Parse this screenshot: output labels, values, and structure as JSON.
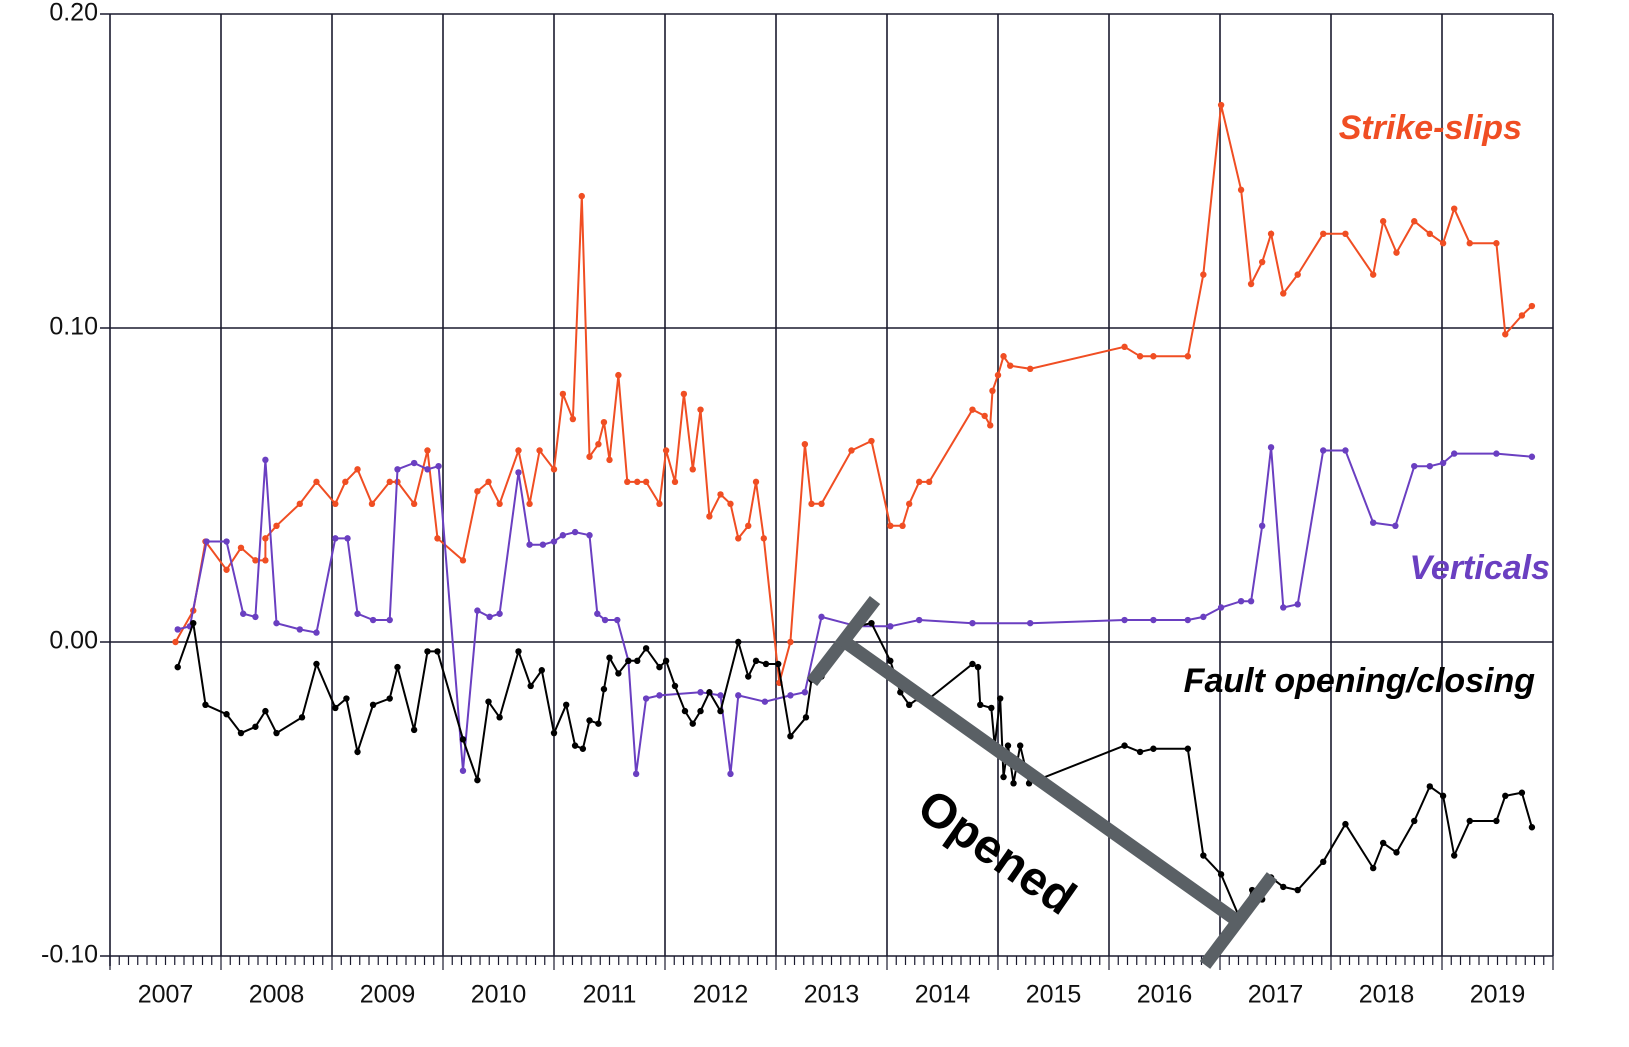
{
  "chart_data": {
    "type": "line",
    "xlim": [
      2007,
      2020
    ],
    "ylim": [
      -0.1,
      0.2
    ],
    "yticks": [
      {
        "value": -0.1,
        "label": "-0.10"
      },
      {
        "value": 0,
        "label": "0.00"
      },
      {
        "value": 0.1,
        "label": "0.10"
      },
      {
        "value": 0.2,
        "label": "0.20"
      }
    ],
    "xticks": [
      {
        "value": 2007.5,
        "label": "2007"
      },
      {
        "value": 2008.5,
        "label": "2008"
      },
      {
        "value": 2009.5,
        "label": "2009"
      },
      {
        "value": 2010.5,
        "label": "2010"
      },
      {
        "value": 2011.5,
        "label": "2011"
      },
      {
        "value": 2012.5,
        "label": "2012"
      },
      {
        "value": 2013.5,
        "label": "2013"
      },
      {
        "value": 2014.5,
        "label": "2014"
      },
      {
        "value": 2015.5,
        "label": "2015"
      },
      {
        "value": 2016.5,
        "label": "2016"
      },
      {
        "value": 2017.5,
        "label": "2017"
      },
      {
        "value": 2018.5,
        "label": "2018"
      },
      {
        "value": 2019.5,
        "label": "2019"
      }
    ],
    "xgrid": [
      2008,
      2009,
      2010,
      2011,
      2012,
      2013,
      2014,
      2015,
      2016,
      2017,
      2018,
      2019,
      2020
    ],
    "grid": true,
    "annotations": [
      "Opened"
    ],
    "series": [
      {
        "name": "Strike-slips",
        "color": "#f04e23",
        "x": [
          2007.59,
          2007.75,
          2007.86,
          2008.05,
          2008.18,
          2008.31,
          2008.4,
          2008.4,
          2008.5,
          2008.71,
          2008.86,
          2009.03,
          2009.12,
          2009.23,
          2009.36,
          2009.52,
          2009.59,
          2009.74,
          2009.86,
          2009.95,
          2010.18,
          2010.31,
          2010.41,
          2010.51,
          2010.68,
          2010.78,
          2010.87,
          2011.0,
          2011.08,
          2011.17,
          2011.25,
          2011.32,
          2011.4,
          2011.45,
          2011.5,
          2011.58,
          2011.66,
          2011.75,
          2011.83,
          2011.95,
          2012.01,
          2012.09,
          2012.17,
          2012.25,
          2012.32,
          2012.4,
          2012.5,
          2012.59,
          2012.66,
          2012.75,
          2012.82,
          2012.89,
          2013.03,
          2013.13,
          2013.26,
          2013.32,
          2013.41,
          2013.68,
          2013.86,
          2014.03,
          2014.14,
          2014.2,
          2014.29,
          2014.38,
          2014.77,
          2014.88,
          2014.93,
          2014.95,
          2015.0,
          2015.05,
          2015.11,
          2015.29,
          2016.14,
          2016.28,
          2016.4,
          2016.71,
          2016.85,
          2017.01,
          2017.19,
          2017.28,
          2017.38,
          2017.46,
          2017.57,
          2017.7,
          2017.93,
          2018.13,
          2018.38,
          2018.47,
          2018.59,
          2018.75,
          2018.89,
          2019.01,
          2019.11,
          2019.25,
          2019.49,
          2019.57,
          2019.72,
          2019.81
        ],
        "values": [
          0,
          0.01,
          0.032,
          0.023,
          0.03,
          0.026,
          0.026,
          0.033,
          0.037,
          0.044,
          0.051,
          0.044,
          0.051,
          0.055,
          0.044,
          0.051,
          0.051,
          0.044,
          0.061,
          0.033,
          0.026,
          0.048,
          0.051,
          0.044,
          0.061,
          0.044,
          0.061,
          0.055,
          0.079,
          0.071,
          0.142,
          0.059,
          0.063,
          0.07,
          0.058,
          0.085,
          0.051,
          0.051,
          0.051,
          0.044,
          0.061,
          0.051,
          0.079,
          0.055,
          0.074,
          0.04,
          0.047,
          0.044,
          0.033,
          0.037,
          0.051,
          0.033,
          -0.013,
          0.0,
          0.063,
          0.044,
          0.044,
          0.061,
          0.064,
          0.037,
          0.037,
          0.044,
          0.051,
          0.051,
          0.074,
          0.072,
          0.069,
          0.08,
          0.085,
          0.091,
          0.088,
          0.087,
          0.094,
          0.091,
          0.091,
          0.091,
          0.117,
          0.171,
          0.144,
          0.114,
          0.121,
          0.13,
          0.111,
          0.117,
          0.13,
          0.13,
          0.117,
          0.134,
          0.124,
          0.134,
          0.13,
          0.127,
          0.138,
          0.127,
          0.127,
          0.098,
          0.104,
          0.107
        ]
      },
      {
        "name": "Verticals",
        "color": "#6a3fc1",
        "x": [
          2007.61,
          2007.72,
          2007.87,
          2008.05,
          2008.2,
          2008.31,
          2008.4,
          2008.5,
          2008.71,
          2008.86,
          2009.03,
          2009.14,
          2009.23,
          2009.37,
          2009.52,
          2009.59,
          2009.74,
          2009.86,
          2009.96,
          2010.18,
          2010.31,
          2010.42,
          2010.51,
          2010.68,
          2010.78,
          2010.9,
          2011.0,
          2011.08,
          2011.19,
          2011.32,
          2011.39,
          2011.46,
          2011.57,
          2011.67,
          2011.74,
          2011.83,
          2011.95,
          2012.32,
          2012.5,
          2012.59,
          2012.66,
          2012.9,
          2013.13,
          2013.26,
          2013.41,
          2013.73,
          2014.03,
          2014.29,
          2014.77,
          2015.29,
          2016.14,
          2016.4,
          2016.71,
          2016.85,
          2017.01,
          2017.19,
          2017.28,
          2017.38,
          2017.46,
          2017.57,
          2017.7,
          2017.93,
          2018.13,
          2018.38,
          2018.58,
          2018.75,
          2018.89,
          2019.01,
          2019.11,
          2019.49,
          2019.81
        ],
        "values": [
          0.004,
          0.005,
          0.032,
          0.032,
          0.009,
          0.008,
          0.058,
          0.006,
          0.004,
          0.003,
          0.033,
          0.033,
          0.009,
          0.007,
          0.007,
          0.055,
          0.057,
          0.055,
          0.056,
          -0.041,
          0.01,
          0.008,
          0.009,
          0.054,
          0.031,
          0.031,
          0.032,
          0.034,
          0.035,
          0.034,
          0.009,
          0.007,
          0.007,
          -0.006,
          -0.042,
          -0.018,
          -0.017,
          -0.016,
          -0.017,
          -0.042,
          -0.017,
          -0.019,
          -0.017,
          -0.016,
          0.008,
          0.005,
          0.005,
          0.007,
          0.006,
          0.006,
          0.007,
          0.007,
          0.007,
          0.008,
          0.011,
          0.013,
          0.013,
          0.037,
          0.062,
          0.011,
          0.012,
          0.061,
          0.061,
          0.038,
          0.037,
          0.056,
          0.056,
          0.057,
          0.06,
          0.06,
          0.059
        ]
      },
      {
        "name": "Fault opening/closing",
        "color": "#000000",
        "x": [
          2007.61,
          2007.75,
          2007.86,
          2008.05,
          2008.18,
          2008.31,
          2008.4,
          2008.5,
          2008.73,
          2008.86,
          2009.03,
          2009.13,
          2009.23,
          2009.37,
          2009.52,
          2009.59,
          2009.74,
          2009.86,
          2009.95,
          2010.18,
          2010.31,
          2010.41,
          2010.51,
          2010.68,
          2010.79,
          2010.89,
          2011.0,
          2011.11,
          2011.19,
          2011.26,
          2011.32,
          2011.4,
          2011.45,
          2011.5,
          2011.58,
          2011.67,
          2011.75,
          2011.83,
          2011.95,
          2012.01,
          2012.09,
          2012.18,
          2012.25,
          2012.32,
          2012.4,
          2012.5,
          2012.66,
          2012.75,
          2012.82,
          2012.91,
          2013.02,
          2013.13,
          2013.27,
          2013.32,
          2013.41,
          2013.73,
          2013.86,
          2014.03,
          2014.12,
          2014.2,
          2014.28,
          2014.38,
          2014.77,
          2014.82,
          2014.84,
          2014.94,
          2014.97,
          2015.02,
          2015.05,
          2015.09,
          2015.14,
          2015.2,
          2015.28,
          2016.14,
          2016.28,
          2016.4,
          2016.71,
          2016.85,
          2017.01,
          2017.19,
          2017.29,
          2017.38,
          2017.46,
          2017.57,
          2017.7,
          2017.93,
          2018.13,
          2018.38,
          2018.47,
          2018.59,
          2018.75,
          2018.89,
          2019.01,
          2019.11,
          2019.25,
          2019.49,
          2019.57,
          2019.72,
          2019.81
        ],
        "values": [
          -0.008,
          0.006,
          -0.02,
          -0.023,
          -0.029,
          -0.027,
          -0.022,
          -0.029,
          -0.024,
          -0.007,
          -0.021,
          -0.018,
          -0.035,
          -0.02,
          -0.018,
          -0.008,
          -0.028,
          -0.003,
          -0.003,
          -0.031,
          -0.044,
          -0.019,
          -0.024,
          -0.003,
          -0.014,
          -0.009,
          -0.029,
          -0.02,
          -0.033,
          -0.034,
          -0.025,
          -0.026,
          -0.015,
          -0.005,
          -0.01,
          -0.006,
          -0.006,
          -0.002,
          -0.008,
          -0.006,
          -0.014,
          -0.022,
          -0.026,
          -0.022,
          -0.016,
          -0.022,
          0.0,
          -0.011,
          -0.006,
          -0.007,
          -0.007,
          -0.03,
          -0.024,
          -0.012,
          -0.011,
          0.005,
          0.006,
          -0.006,
          -0.016,
          -0.02,
          -0.018,
          -0.018,
          -0.007,
          -0.008,
          -0.02,
          -0.021,
          -0.033,
          -0.018,
          -0.043,
          -0.033,
          -0.045,
          -0.033,
          -0.045,
          -0.033,
          -0.035,
          -0.034,
          -0.034,
          -0.068,
          -0.074,
          -0.089,
          -0.079,
          -0.082,
          -0.075,
          -0.078,
          -0.079,
          -0.07,
          -0.058,
          -0.072,
          -0.064,
          -0.067,
          -0.057,
          -0.046,
          -0.049,
          -0.068,
          -0.057,
          -0.057,
          -0.049,
          -0.048,
          -0.059
        ]
      }
    ]
  }
}
